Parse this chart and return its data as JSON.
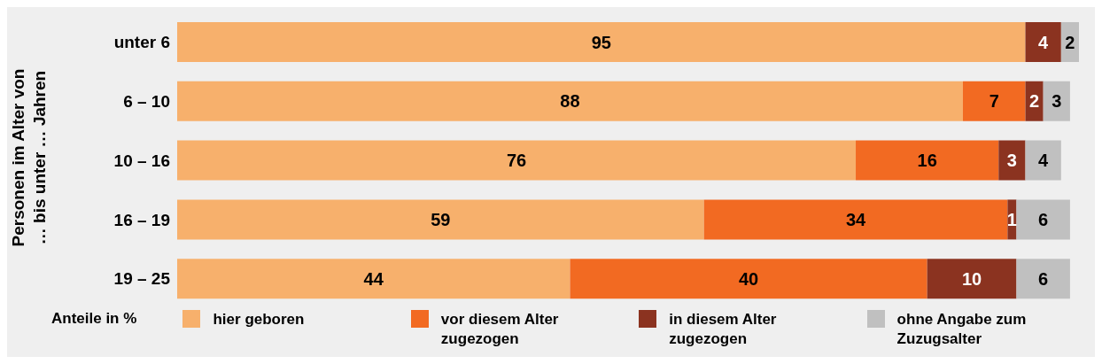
{
  "chart_data": {
    "type": "bar",
    "orientation": "horizontal",
    "stacked": true,
    "data_labels": true,
    "legend": "bottom",
    "legend_title": "Anteile in %",
    "ylabel": "Personen im Alter von … bis unter … Jahren",
    "categories": [
      "unter 6",
      "6 – 10",
      "10 – 16",
      "16 – 19",
      "19 – 25"
    ],
    "series": [
      {
        "name": "hier geboren",
        "color": "#f7b06c",
        "values": [
          95,
          88,
          76,
          59,
          44
        ]
      },
      {
        "name": "vor diesem Alter zugezogen",
        "color": "#f26a22",
        "values": [
          null,
          7,
          16,
          34,
          40
        ]
      },
      {
        "name": "in diesem Alter zugezogen",
        "color": "#8b3320",
        "values": [
          4,
          2,
          3,
          1,
          10
        ]
      },
      {
        "name": "ohne Angabe zum Zuzugsalter",
        "color": "#c0c0c0",
        "values": [
          2,
          3,
          4,
          6,
          6
        ]
      }
    ]
  }
}
